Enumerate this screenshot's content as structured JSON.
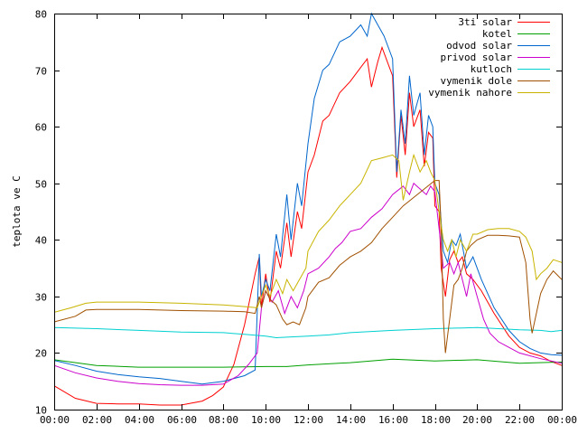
{
  "chart_data": {
    "type": "line",
    "title": "",
    "xlabel": "",
    "ylabel": "teplota ve C",
    "xlim": [
      0,
      24
    ],
    "ylim": [
      10,
      80
    ],
    "grid": false,
    "legend_position": "top-right",
    "x_ticks": [
      "00:00",
      "02:00",
      "04:00",
      "06:00",
      "08:00",
      "10:00",
      "12:00",
      "14:00",
      "16:00",
      "18:00",
      "20:00",
      "22:00",
      "00:00"
    ],
    "y_ticks": [
      "10",
      "20",
      "30",
      "40",
      "50",
      "60",
      "70",
      "80"
    ],
    "series": [
      {
        "name": "3ti solar",
        "color": "#ff0000",
        "points": [
          [
            0,
            14.2
          ],
          [
            1,
            12
          ],
          [
            2,
            11.1
          ],
          [
            3,
            11
          ],
          [
            4,
            11
          ],
          [
            5,
            10.8
          ],
          [
            6,
            10.8
          ],
          [
            7,
            11.5
          ],
          [
            7.5,
            12.5
          ],
          [
            8,
            14
          ],
          [
            8.5,
            18
          ],
          [
            9,
            25
          ],
          [
            9.5,
            34
          ],
          [
            9.7,
            37
          ],
          [
            9.8,
            28
          ],
          [
            10,
            34
          ],
          [
            10.2,
            29
          ],
          [
            10.5,
            38
          ],
          [
            10.7,
            35
          ],
          [
            11,
            43
          ],
          [
            11.2,
            37
          ],
          [
            11.5,
            45
          ],
          [
            11.7,
            42
          ],
          [
            12,
            52
          ],
          [
            12.3,
            55
          ],
          [
            12.7,
            61
          ],
          [
            13,
            62
          ],
          [
            13.5,
            66
          ],
          [
            14,
            68
          ],
          [
            14.5,
            70.5
          ],
          [
            14.8,
            72
          ],
          [
            15,
            67
          ],
          [
            15.3,
            71.5
          ],
          [
            15.5,
            74
          ],
          [
            15.8,
            71
          ],
          [
            16,
            69
          ],
          [
            16.2,
            51
          ],
          [
            16.4,
            62
          ],
          [
            16.6,
            55
          ],
          [
            16.8,
            66
          ],
          [
            17,
            60
          ],
          [
            17.3,
            63
          ],
          [
            17.5,
            53
          ],
          [
            17.7,
            59
          ],
          [
            17.9,
            58
          ],
          [
            18,
            46
          ],
          [
            18.2,
            45
          ],
          [
            18.3,
            35
          ],
          [
            18.5,
            30
          ],
          [
            18.7,
            36.5
          ],
          [
            18.9,
            38
          ],
          [
            19.1,
            36
          ],
          [
            19.3,
            37
          ],
          [
            19.5,
            34
          ],
          [
            19.8,
            33
          ],
          [
            20.2,
            31
          ],
          [
            20.8,
            27
          ],
          [
            21.5,
            23
          ],
          [
            22,
            21
          ],
          [
            22.5,
            20
          ],
          [
            23,
            19.5
          ],
          [
            23.5,
            18.5
          ],
          [
            24,
            17.8
          ]
        ]
      },
      {
        "name": "kotel",
        "color": "#00a000",
        "points": [
          [
            0,
            18.8
          ],
          [
            2,
            17.8
          ],
          [
            4,
            17.5
          ],
          [
            6,
            17.5
          ],
          [
            8,
            17.5
          ],
          [
            10,
            17.6
          ],
          [
            11,
            17.6
          ],
          [
            12,
            17.9
          ],
          [
            14,
            18.3
          ],
          [
            16,
            18.9
          ],
          [
            18,
            18.6
          ],
          [
            20,
            18.8
          ],
          [
            22,
            18.2
          ],
          [
            24,
            18.4
          ]
        ]
      },
      {
        "name": "odvod solar",
        "color": "#0066cc",
        "points": [
          [
            0,
            18.7
          ],
          [
            1,
            17.8
          ],
          [
            2,
            16.8
          ],
          [
            3,
            16.2
          ],
          [
            4,
            15.8
          ],
          [
            5,
            15.5
          ],
          [
            6,
            15
          ],
          [
            7,
            14.5
          ],
          [
            8,
            15
          ],
          [
            8.5,
            15.5
          ],
          [
            9,
            16
          ],
          [
            9.5,
            17
          ],
          [
            9.7,
            37.5
          ],
          [
            9.8,
            30
          ],
          [
            10,
            33
          ],
          [
            10.2,
            31
          ],
          [
            10.5,
            41
          ],
          [
            10.7,
            37
          ],
          [
            11,
            48
          ],
          [
            11.2,
            40
          ],
          [
            11.5,
            50
          ],
          [
            11.7,
            46
          ],
          [
            12,
            57
          ],
          [
            12.3,
            65
          ],
          [
            12.7,
            70
          ],
          [
            13,
            71
          ],
          [
            13.5,
            75
          ],
          [
            14,
            76
          ],
          [
            14.5,
            78
          ],
          [
            14.8,
            76
          ],
          [
            15,
            80
          ],
          [
            15.3,
            78
          ],
          [
            15.6,
            76
          ],
          [
            15.8,
            74
          ],
          [
            16,
            72
          ],
          [
            16.2,
            52
          ],
          [
            16.4,
            63
          ],
          [
            16.6,
            57
          ],
          [
            16.8,
            69
          ],
          [
            17,
            62
          ],
          [
            17.3,
            66
          ],
          [
            17.5,
            55
          ],
          [
            17.7,
            62
          ],
          [
            17.9,
            60
          ],
          [
            18,
            50
          ],
          [
            18.2,
            48
          ],
          [
            18.4,
            38
          ],
          [
            18.6,
            36
          ],
          [
            18.8,
            40
          ],
          [
            19,
            39
          ],
          [
            19.2,
            41
          ],
          [
            19.5,
            35
          ],
          [
            19.8,
            37
          ],
          [
            20.2,
            33
          ],
          [
            20.8,
            28
          ],
          [
            21.5,
            24
          ],
          [
            22,
            22
          ],
          [
            22.5,
            20.8
          ],
          [
            23,
            20
          ],
          [
            23.5,
            19.7
          ],
          [
            24,
            19.6
          ]
        ]
      },
      {
        "name": "privod solar",
        "color": "#cc00cc",
        "points": [
          [
            0,
            17.8
          ],
          [
            1,
            16.5
          ],
          [
            2,
            15.6
          ],
          [
            3,
            15
          ],
          [
            4,
            14.6
          ],
          [
            5,
            14.4
          ],
          [
            6,
            14.3
          ],
          [
            7,
            14.3
          ],
          [
            8,
            14.5
          ],
          [
            8.7,
            16
          ],
          [
            9.2,
            18
          ],
          [
            9.6,
            20
          ],
          [
            9.8,
            28
          ],
          [
            10,
            31
          ],
          [
            10.3,
            29
          ],
          [
            10.6,
            31
          ],
          [
            10.9,
            27
          ],
          [
            11.2,
            30
          ],
          [
            11.5,
            28
          ],
          [
            11.8,
            31
          ],
          [
            12,
            34
          ],
          [
            12.5,
            35
          ],
          [
            13,
            37
          ],
          [
            13.3,
            38.5
          ],
          [
            13.6,
            39.5
          ],
          [
            14,
            41.5
          ],
          [
            14.5,
            42
          ],
          [
            15,
            44
          ],
          [
            15.5,
            45.5
          ],
          [
            16,
            48
          ],
          [
            16.5,
            49.5
          ],
          [
            16.8,
            48
          ],
          [
            17,
            50
          ],
          [
            17.3,
            49
          ],
          [
            17.6,
            48
          ],
          [
            17.8,
            49.5
          ],
          [
            18,
            48.5
          ],
          [
            18.2,
            42
          ],
          [
            18.4,
            35
          ],
          [
            18.7,
            36
          ],
          [
            18.9,
            34
          ],
          [
            19.1,
            36
          ],
          [
            19.3,
            33
          ],
          [
            19.5,
            30
          ],
          [
            19.7,
            34
          ],
          [
            20,
            30
          ],
          [
            20.3,
            26
          ],
          [
            20.6,
            23.5
          ],
          [
            21,
            22
          ],
          [
            21.5,
            21
          ],
          [
            22,
            20
          ],
          [
            23,
            19
          ],
          [
            24,
            18.2
          ]
        ]
      },
      {
        "name": "kutloch",
        "color": "#00d0d0",
        "points": [
          [
            0,
            24.5
          ],
          [
            2,
            24.3
          ],
          [
            4,
            24
          ],
          [
            6,
            23.7
          ],
          [
            8,
            23.6
          ],
          [
            9,
            23.3
          ],
          [
            10,
            23
          ],
          [
            10.5,
            22.7
          ],
          [
            11,
            22.8
          ],
          [
            12,
            23
          ],
          [
            13,
            23.2
          ],
          [
            14,
            23.6
          ],
          [
            16,
            24
          ],
          [
            18,
            24.3
          ],
          [
            20,
            24.5
          ],
          [
            21,
            24.3
          ],
          [
            22,
            24.1
          ],
          [
            23,
            24
          ],
          [
            23.5,
            23.8
          ],
          [
            24,
            24
          ]
        ]
      },
      {
        "name": "vymenik dole",
        "color": "#a05000",
        "points": [
          [
            0,
            25.5
          ],
          [
            1,
            26.5
          ],
          [
            1.5,
            27.6
          ],
          [
            2,
            27.7
          ],
          [
            4,
            27.7
          ],
          [
            6,
            27.5
          ],
          [
            8,
            27.4
          ],
          [
            9,
            27.3
          ],
          [
            9.5,
            27
          ],
          [
            9.7,
            30
          ],
          [
            9.8,
            28
          ],
          [
            10,
            31
          ],
          [
            10.2,
            29.5
          ],
          [
            10.5,
            28.5
          ],
          [
            10.8,
            26
          ],
          [
            11,
            25
          ],
          [
            11.3,
            25.5
          ],
          [
            11.6,
            25
          ],
          [
            11.9,
            28
          ],
          [
            12,
            30
          ],
          [
            12.5,
            32.5
          ],
          [
            13,
            33.3
          ],
          [
            13.5,
            35.5
          ],
          [
            14,
            37
          ],
          [
            14.5,
            38
          ],
          [
            15,
            39.5
          ],
          [
            15.5,
            42
          ],
          [
            16,
            44
          ],
          [
            16.5,
            46
          ],
          [
            17,
            47.5
          ],
          [
            17.5,
            49
          ],
          [
            18,
            50.5
          ],
          [
            18.2,
            50.5
          ],
          [
            18.3,
            42
          ],
          [
            18.4,
            26
          ],
          [
            18.5,
            20
          ],
          [
            18.7,
            26
          ],
          [
            18.9,
            32
          ],
          [
            19.1,
            33
          ],
          [
            19.3,
            35
          ],
          [
            19.5,
            38
          ],
          [
            19.7,
            39
          ],
          [
            20,
            40
          ],
          [
            20.5,
            40.8
          ],
          [
            21,
            40.8
          ],
          [
            21.5,
            40.7
          ],
          [
            22,
            40.5
          ],
          [
            22.3,
            36
          ],
          [
            22.5,
            26
          ],
          [
            22.6,
            23.5
          ],
          [
            22.8,
            27
          ],
          [
            23,
            30.5
          ],
          [
            23.3,
            33
          ],
          [
            23.6,
            34.5
          ],
          [
            24,
            33
          ]
        ]
      },
      {
        "name": "vymenik nahore",
        "color": "#c8b400",
        "points": [
          [
            0,
            27.2
          ],
          [
            0.8,
            28
          ],
          [
            1.5,
            28.8
          ],
          [
            2,
            29
          ],
          [
            4,
            29
          ],
          [
            6,
            28.8
          ],
          [
            8,
            28.5
          ],
          [
            9,
            28.2
          ],
          [
            9.6,
            28
          ],
          [
            9.7,
            29
          ],
          [
            9.8,
            30
          ],
          [
            10,
            32
          ],
          [
            10.2,
            30
          ],
          [
            10.5,
            33
          ],
          [
            10.8,
            30.5
          ],
          [
            11,
            33
          ],
          [
            11.3,
            31
          ],
          [
            11.6,
            33
          ],
          [
            11.9,
            35
          ],
          [
            12,
            38
          ],
          [
            12.5,
            41.5
          ],
          [
            13,
            43.5
          ],
          [
            13.5,
            46
          ],
          [
            14,
            48
          ],
          [
            14.5,
            50
          ],
          [
            15,
            54
          ],
          [
            15.5,
            54.5
          ],
          [
            16,
            55
          ],
          [
            16.3,
            54
          ],
          [
            16.5,
            47
          ],
          [
            16.8,
            52
          ],
          [
            17,
            55
          ],
          [
            17.3,
            52
          ],
          [
            17.6,
            54
          ],
          [
            17.8,
            52
          ],
          [
            18,
            50.5
          ],
          [
            18.2,
            45
          ],
          [
            18.4,
            40
          ],
          [
            18.6,
            38
          ],
          [
            18.8,
            40
          ],
          [
            19,
            37
          ],
          [
            19.2,
            40
          ],
          [
            19.5,
            38
          ],
          [
            19.8,
            41
          ],
          [
            20,
            41
          ],
          [
            20.5,
            41.8
          ],
          [
            21,
            42
          ],
          [
            21.5,
            42
          ],
          [
            22,
            41.5
          ],
          [
            22.3,
            40.5
          ],
          [
            22.6,
            38
          ],
          [
            22.8,
            33
          ],
          [
            23,
            34
          ],
          [
            23.3,
            35
          ],
          [
            23.6,
            36.5
          ],
          [
            24,
            36
          ]
        ]
      }
    ]
  }
}
